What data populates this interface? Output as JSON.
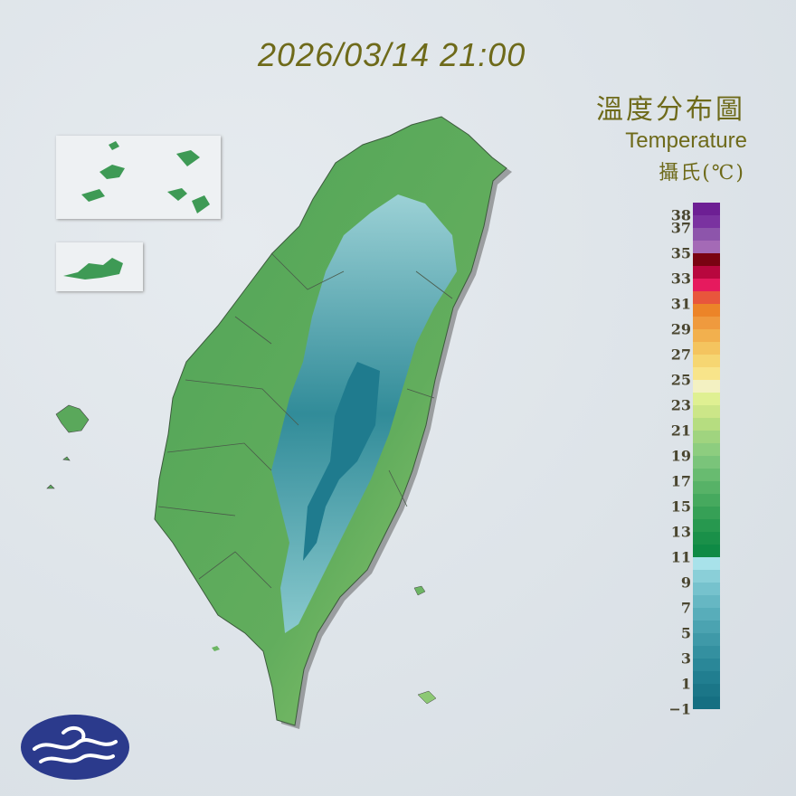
{
  "timestamp": "2026/03/14 21:00",
  "legend": {
    "title_zh": "溫度分布圖",
    "title_en": "Temperature",
    "unit": "攝氏(℃)",
    "ticks": [
      "38",
      "37",
      "35",
      "33",
      "31",
      "29",
      "27",
      "25",
      "23",
      "21",
      "19",
      "17",
      "15",
      "13",
      "11",
      "9",
      "7",
      "5",
      "3",
      "1",
      "-1"
    ],
    "tick_values": [
      38,
      37,
      35,
      33,
      31,
      29,
      27,
      25,
      23,
      21,
      19,
      17,
      15,
      13,
      11,
      9,
      7,
      5,
      3,
      1,
      -1
    ],
    "colors": [
      "#156f82",
      "#1b7688",
      "#217e90",
      "#2a8798",
      "#3490a0",
      "#3f99a8",
      "#4ba3b1",
      "#58adba",
      "#66b7c3",
      "#76c2cd",
      "#8acfd8",
      "#a8e2ea",
      "#0f8a45",
      "#1a9049",
      "#27984f",
      "#36a056",
      "#46a95e",
      "#57b267",
      "#68bb70",
      "#7ac47a",
      "#8dcd7f",
      "#a0d47f",
      "#b6dd80",
      "#cce688",
      "#dff092",
      "#f3f1c2",
      "#f8e48a",
      "#f6d672",
      "#f4c45f",
      "#f2b04e",
      "#ef9a3e",
      "#ec8428",
      "#e8563c",
      "#e61a5e",
      "#b8073e",
      "#7a0312",
      "#a46ab6",
      "#8d55ab",
      "#7a32a0",
      "#6d1f94"
    ]
  },
  "map": {
    "land_color": "#5aa85b",
    "mountain_color": "#2f8c9e",
    "peak_color": "#a5d8e0"
  },
  "logo": {
    "name": "central-weather-administration-logo",
    "color": "#2b3a8c"
  }
}
